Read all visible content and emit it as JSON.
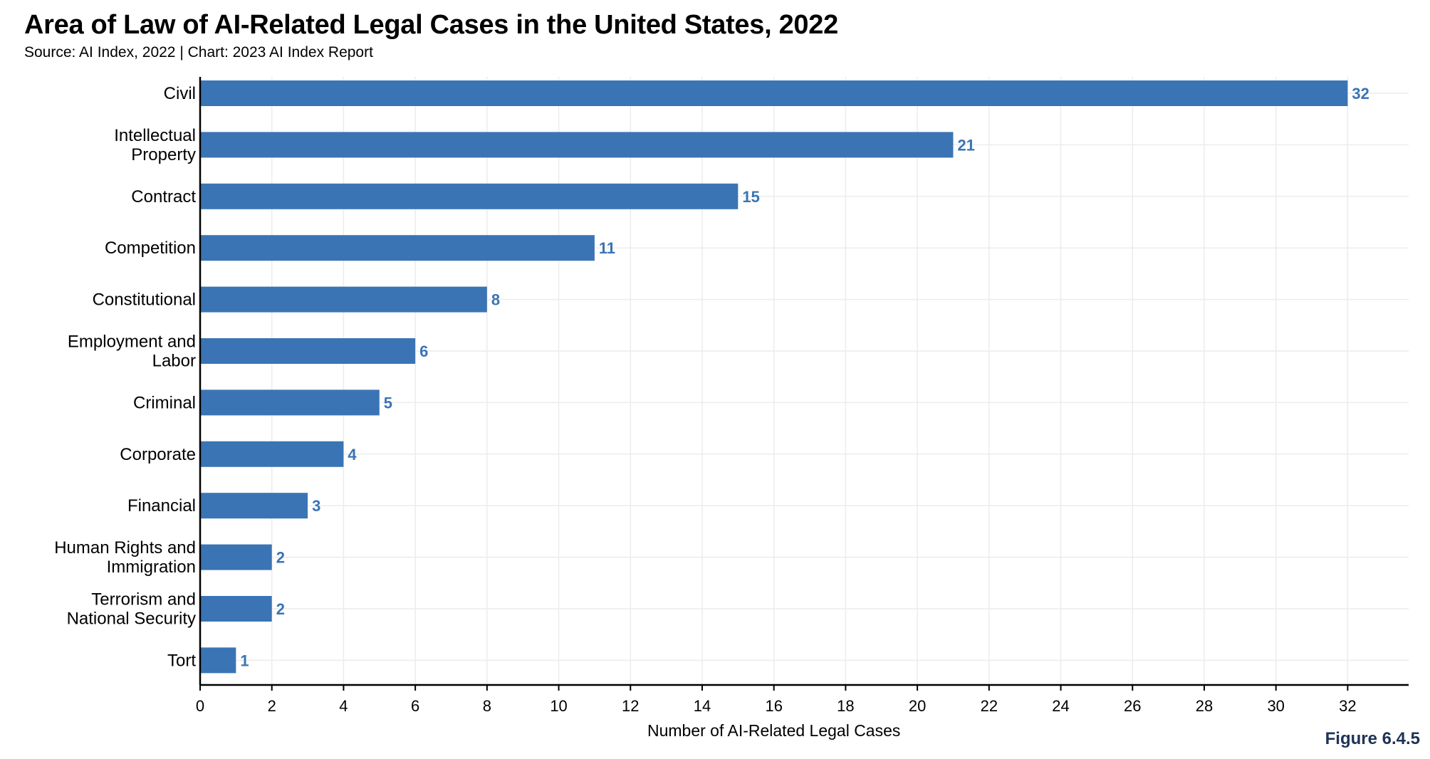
{
  "header": {
    "title": "Area of Law of AI-Related Legal Cases in the United States, 2022",
    "subtitle": "Source: AI Index, 2022 | Chart: 2023 AI Index Report"
  },
  "figure_label": "Figure 6.4.5",
  "colors": {
    "bar": "#3a74b5",
    "value_label": "#3a74b5",
    "grid": "#ececec",
    "axis": "#000000",
    "figure_label": "#1f3355"
  },
  "chart_data": {
    "type": "bar",
    "orientation": "horizontal",
    "categories": [
      [
        "Civil"
      ],
      [
        "Intellectual",
        "Property"
      ],
      [
        "Contract"
      ],
      [
        "Competition"
      ],
      [
        "Constitutional"
      ],
      [
        "Employment and",
        "Labor"
      ],
      [
        "Criminal"
      ],
      [
        "Corporate"
      ],
      [
        "Financial"
      ],
      [
        "Human Rights and",
        "Immigration"
      ],
      [
        "Terrorism and",
        "National Security"
      ],
      [
        "Tort"
      ]
    ],
    "values": [
      32,
      21,
      15,
      11,
      8,
      6,
      5,
      4,
      3,
      2,
      2,
      1
    ],
    "xlabel": "Number of AI-Related Legal Cases",
    "ylabel": "",
    "xlim": [
      0,
      33.7
    ],
    "xticks": [
      0,
      2,
      4,
      6,
      8,
      10,
      12,
      14,
      16,
      18,
      20,
      22,
      24,
      26,
      28,
      30,
      32
    ],
    "grid": true,
    "data_labels": true,
    "legend": "none"
  }
}
